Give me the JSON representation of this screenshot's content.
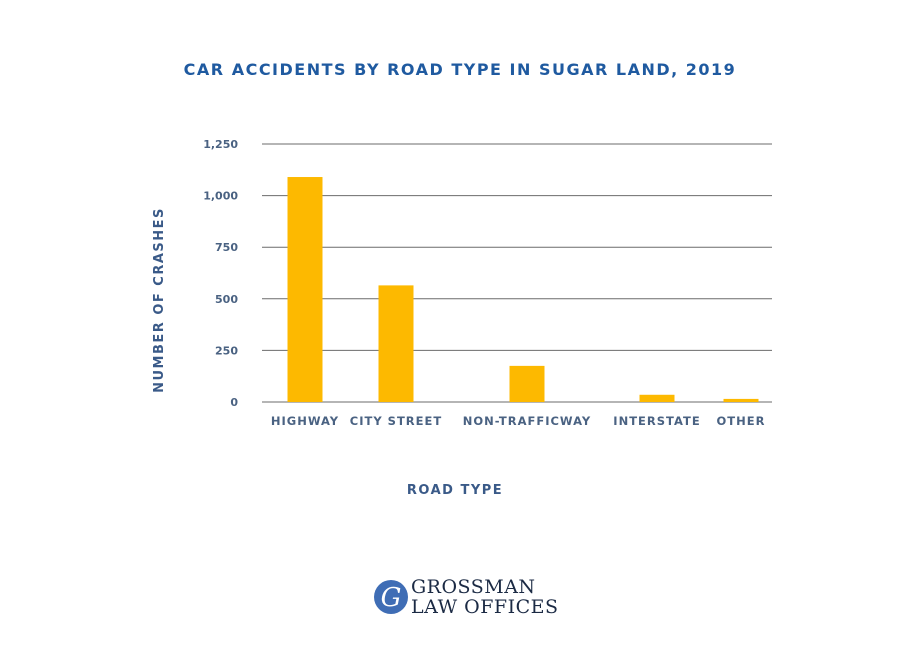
{
  "chart_data": {
    "type": "bar",
    "title": "CAR ACCIDENTS BY ROAD TYPE IN SUGAR LAND, 2019",
    "xlabel": "ROAD TYPE",
    "ylabel": "NUMBER OF CRASHES",
    "categories": [
      "HIGHWAY",
      "CITY STREET",
      "NON-TRAFFICWAY",
      "INTERSTATE",
      "OTHER"
    ],
    "values": [
      1090,
      565,
      175,
      35,
      15
    ],
    "ylim": [
      0,
      1250
    ],
    "yticks": [
      "0",
      "250",
      "500",
      "750",
      "1,000",
      "1,250"
    ],
    "bar_color": "#fdb900",
    "grid": true
  },
  "logo": {
    "monogram": "G",
    "line1": "GROSSMAN",
    "line2": "LAW OFFICES",
    "color": "#3f6db5"
  }
}
